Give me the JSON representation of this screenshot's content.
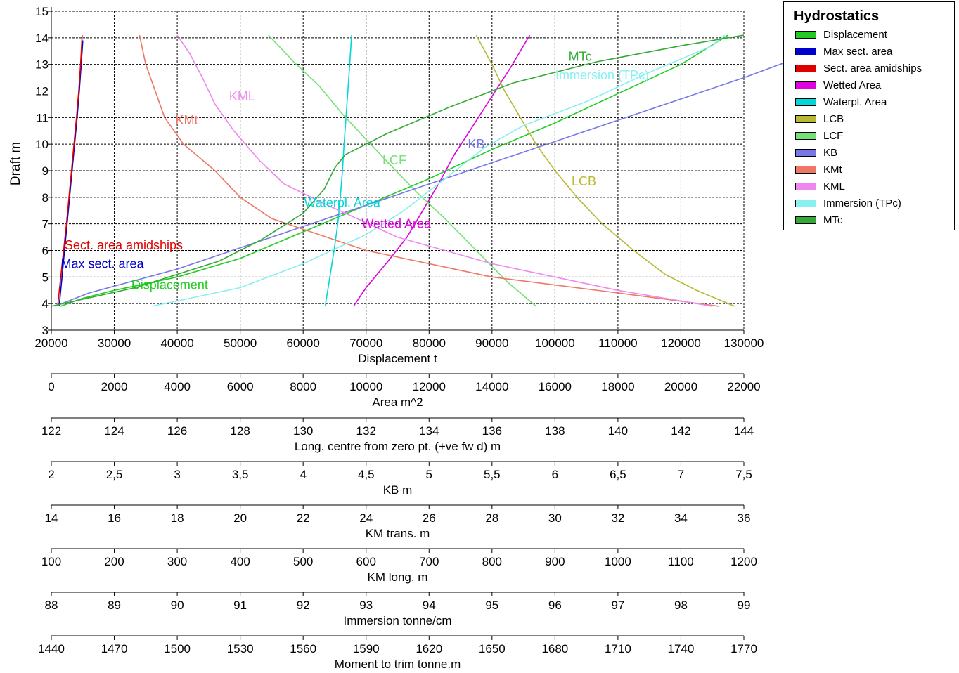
{
  "chart_data": {
    "type": "line",
    "title": "Hydrostatics",
    "ylabel": "Draft  m",
    "ylim": [
      3,
      15
    ],
    "grid": true,
    "legend_placement": "top-right",
    "y_ticks": [
      "3",
      "4",
      "5",
      "6",
      "7",
      "8",
      "9",
      "10",
      "11",
      "12",
      "13",
      "14",
      "15"
    ],
    "x_axes": [
      {
        "label": "Displacement  t",
        "ticks": [
          "20000",
          "30000",
          "40000",
          "50000",
          "60000",
          "70000",
          "80000",
          "90000",
          "100000",
          "110000",
          "120000",
          "130000"
        ]
      },
      {
        "label": "Area  m^2",
        "ticks": [
          "0",
          "2000",
          "4000",
          "6000",
          "8000",
          "10000",
          "12000",
          "14000",
          "16000",
          "18000",
          "20000",
          "22000"
        ]
      },
      {
        "label": "Long. centre  from zero pt. (+ve fw d) m",
        "ticks": [
          "122",
          "124",
          "126",
          "128",
          "130",
          "132",
          "134",
          "136",
          "138",
          "140",
          "142",
          "144"
        ]
      },
      {
        "label": "KB  m",
        "ticks": [
          "2",
          "2,5",
          "3",
          "3,5",
          "4",
          "4,5",
          "5",
          "5,5",
          "6",
          "6,5",
          "7",
          "7,5"
        ]
      },
      {
        "label": "KM trans.  m",
        "ticks": [
          "14",
          "16",
          "18",
          "20",
          "22",
          "24",
          "26",
          "28",
          "30",
          "32",
          "34",
          "36"
        ]
      },
      {
        "label": "KM long.  m",
        "ticks": [
          "100",
          "200",
          "300",
          "400",
          "500",
          "600",
          "700",
          "800",
          "900",
          "1000",
          "1100",
          "1200"
        ]
      },
      {
        "label": "Immersion  tonne/cm",
        "ticks": [
          "88",
          "89",
          "90",
          "91",
          "92",
          "93",
          "94",
          "95",
          "96",
          "97",
          "98",
          "99"
        ]
      },
      {
        "label": "Moment to trim  tonne.m",
        "ticks": [
          "1440",
          "1470",
          "1500",
          "1530",
          "1560",
          "1590",
          "1620",
          "1650",
          "1680",
          "1710",
          "1740",
          "1770"
        ]
      }
    ],
    "series": [
      {
        "name": "Displacement",
        "color": "#22cc22",
        "axis": "Displacement  t",
        "points": [
          [
            21500,
            3.9
          ],
          [
            25000,
            4.2
          ],
          [
            30000,
            4.5
          ],
          [
            40000,
            5.0
          ],
          [
            50000,
            5.7
          ],
          [
            60000,
            6.7
          ],
          [
            70000,
            7.7
          ],
          [
            80000,
            8.7
          ],
          [
            90000,
            9.8
          ],
          [
            100000,
            10.8
          ],
          [
            110000,
            11.9
          ],
          [
            120000,
            13.0
          ],
          [
            127500,
            14.1
          ]
        ]
      },
      {
        "name": "Max sect. area",
        "color": "#0000cc",
        "axis": "Area  m^2",
        "points": [
          [
            250,
            3.9
          ],
          [
            340,
            5.0
          ],
          [
            420,
            6.0
          ],
          [
            500,
            7.0
          ],
          [
            580,
            8.0
          ],
          [
            660,
            9.0
          ],
          [
            740,
            10.0
          ],
          [
            820,
            11.0
          ],
          [
            890,
            12.0
          ],
          [
            950,
            13.0
          ],
          [
            1000,
            13.9
          ]
        ]
      },
      {
        "name": "Sect. area amidships",
        "color": "#e00000",
        "axis": "Area  m^2",
        "points": [
          [
            200,
            3.9
          ],
          [
            300,
            5.0
          ],
          [
            390,
            6.0
          ],
          [
            480,
            7.0
          ],
          [
            560,
            8.0
          ],
          [
            640,
            9.0
          ],
          [
            720,
            10.0
          ],
          [
            800,
            11.0
          ],
          [
            870,
            12.0
          ],
          [
            930,
            13.0
          ],
          [
            980,
            14.1
          ]
        ]
      },
      {
        "name": "Wetted Area",
        "color": "#e000e0",
        "axis": "Area  m^2",
        "points": [
          [
            9600,
            3.9
          ],
          [
            10000,
            4.6
          ],
          [
            10700,
            5.6
          ],
          [
            11300,
            6.5
          ],
          [
            11800,
            7.5
          ],
          [
            12300,
            8.5
          ],
          [
            12800,
            9.6
          ],
          [
            13400,
            10.7
          ],
          [
            14000,
            11.8
          ],
          [
            14600,
            12.9
          ],
          [
            15200,
            14.1
          ]
        ]
      },
      {
        "name": "Waterpl. Area",
        "color": "#00d8d8",
        "axis": "Area  m^2",
        "points": [
          [
            8700,
            3.9
          ],
          [
            8850,
            5.0
          ],
          [
            8980,
            6.0
          ],
          [
            9100,
            7.0
          ],
          [
            9180,
            8.0
          ],
          [
            9250,
            9.0
          ],
          [
            9300,
            10.0
          ],
          [
            9360,
            11.0
          ],
          [
            9420,
            12.0
          ],
          [
            9480,
            13.0
          ],
          [
            9540,
            14.1
          ]
        ]
      },
      {
        "name": "LCB",
        "color": "#b8b833",
        "axis": "Long. centre  from zero pt. (+ve fw d) m",
        "points": [
          [
            143.7,
            3.9
          ],
          [
            142.5,
            4.5
          ],
          [
            141.5,
            5.1
          ],
          [
            140.5,
            6.0
          ],
          [
            139.5,
            7.0
          ],
          [
            138.7,
            8.0
          ],
          [
            138.0,
            9.0
          ],
          [
            137.4,
            10.0
          ],
          [
            136.9,
            11.0
          ],
          [
            136.4,
            12.0
          ],
          [
            136.0,
            13.0
          ],
          [
            135.5,
            14.1
          ]
        ]
      },
      {
        "name": "LCF",
        "color": "#77e077",
        "axis": "Long. centre  from zero pt. (+ve fw d) m",
        "points": [
          [
            137.4,
            3.9
          ],
          [
            136.5,
            4.8
          ],
          [
            135.5,
            6.0
          ],
          [
            134.5,
            7.2
          ],
          [
            133.6,
            8.2
          ],
          [
            132.7,
            9.3
          ],
          [
            131.9,
            10.3
          ],
          [
            131.2,
            11.2
          ],
          [
            130.5,
            12.2
          ],
          [
            129.7,
            13.1
          ],
          [
            128.9,
            14.1
          ]
        ]
      },
      {
        "name": "KB",
        "color": "#7777e8",
        "axis": "KB  m",
        "points": [
          [
            2.03,
            3.9
          ],
          [
            2.3,
            4.4
          ],
          [
            3.0,
            5.3
          ],
          [
            3.5,
            6.1
          ],
          [
            4.0,
            6.9
          ],
          [
            4.5,
            7.7
          ],
          [
            5.0,
            8.5
          ],
          [
            5.5,
            9.3
          ],
          [
            6.0,
            10.1
          ],
          [
            6.5,
            10.9
          ],
          [
            7.0,
            11.7
          ],
          [
            7.5,
            12.5
          ],
          [
            7.9,
            13.2
          ],
          [
            8.3,
            14.1
          ]
        ]
      },
      {
        "name": "KMt",
        "color": "#ee7766",
        "axis": "KM trans.  m",
        "points": [
          [
            35.2,
            3.9
          ],
          [
            32,
            4.4
          ],
          [
            28,
            5.0
          ],
          [
            24,
            6.0
          ],
          [
            21,
            7.2
          ],
          [
            20,
            8.0
          ],
          [
            19.2,
            9.0
          ],
          [
            18.2,
            10.0
          ],
          [
            17.6,
            11.0
          ],
          [
            17.3,
            12.0
          ],
          [
            17.0,
            13.0
          ],
          [
            16.8,
            14.1
          ]
        ]
      },
      {
        "name": "KML",
        "color": "#ee88ee",
        "axis": "KM long.  m",
        "points": [
          [
            1150,
            3.9
          ],
          [
            1000,
            4.5
          ],
          [
            800,
            5.5
          ],
          [
            650,
            6.5
          ],
          [
            530,
            7.8
          ],
          [
            470,
            8.5
          ],
          [
            430,
            9.4
          ],
          [
            390,
            10.5
          ],
          [
            360,
            11.5
          ],
          [
            340,
            12.5
          ],
          [
            320,
            13.4
          ],
          [
            300,
            14.1
          ]
        ]
      },
      {
        "name": "Immersion (TPc)",
        "color": "#88f0f0",
        "axis": "Immersion  tonne/cm",
        "points": [
          [
            89.6,
            3.9
          ],
          [
            91.0,
            4.6
          ],
          [
            92.0,
            5.5
          ],
          [
            93.0,
            6.6
          ],
          [
            93.6,
            7.5
          ],
          [
            94.2,
            8.6
          ],
          [
            94.9,
            9.9
          ],
          [
            95.5,
            10.7
          ],
          [
            96.5,
            11.6
          ],
          [
            97.5,
            12.7
          ],
          [
            98.5,
            13.7
          ],
          [
            98.7,
            14.1
          ]
        ]
      },
      {
        "name": "MTc",
        "color": "#33aa33",
        "axis": "Moment to trim  tonne.m",
        "points": [
          [
            1440,
            3.9
          ],
          [
            1480,
            4.6
          ],
          [
            1520,
            5.6
          ],
          [
            1540,
            6.4
          ],
          [
            1560,
            7.4
          ],
          [
            1570,
            8.3
          ],
          [
            1575,
            9.1
          ],
          [
            1580,
            9.6
          ],
          [
            1600,
            10.4
          ],
          [
            1630,
            11.4
          ],
          [
            1660,
            12.3
          ],
          [
            1700,
            13.1
          ],
          [
            1740,
            13.7
          ],
          [
            1770,
            14.1
          ]
        ]
      }
    ],
    "annotations": [
      {
        "text": "MTc",
        "series": "MTc",
        "x": 104000,
        "y": 13.3
      },
      {
        "text": "Immersion (TPc)",
        "series": "Immersion (TPc)",
        "x": 107500,
        "y": 12.6
      },
      {
        "text": "KML",
        "series": "KML",
        "x": 50300,
        "y": 11.8
      },
      {
        "text": "KMt",
        "series": "KMt",
        "x": 41500,
        "y": 10.9
      },
      {
        "text": "KB",
        "series": "KB",
        "x": 87500,
        "y": 10.0
      },
      {
        "text": "LCF",
        "series": "LCF",
        "x": 74500,
        "y": 9.4
      },
      {
        "text": "LCB",
        "series": "LCB",
        "x": 104600,
        "y": 8.6
      },
      {
        "text": "Waterpl. Area",
        "series": "Waterpl. Area",
        "x": 66200,
        "y": 7.8
      },
      {
        "text": "Wetted Area",
        "series": "Wetted Area",
        "x": 74800,
        "y": 7.0
      },
      {
        "text": "Sect. area amidships",
        "series": "Sect. area amidships",
        "x": 31500,
        "y": 6.2
      },
      {
        "text": "Max sect. area",
        "series": "Max sect. area",
        "x": 28100,
        "y": 5.5
      },
      {
        "text": "Displacement",
        "series": "Displacement",
        "x": 38800,
        "y": 4.7
      }
    ]
  }
}
